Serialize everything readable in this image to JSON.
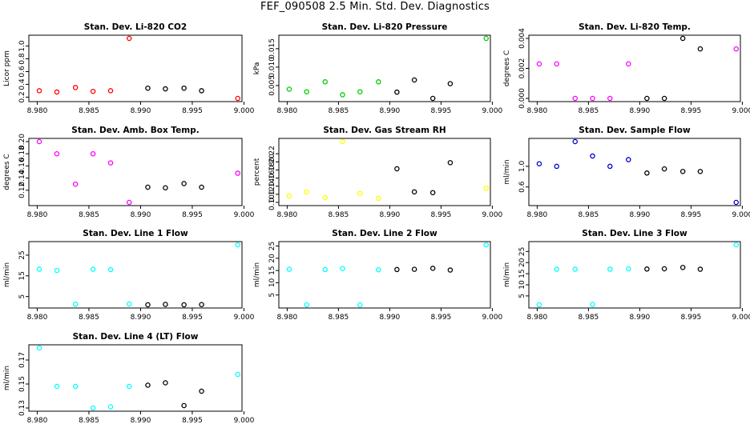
{
  "figure_title": "FEF_090508  2.5 Min. Std. Dev. Diagnostics",
  "chart_data": [
    {
      "type": "scatter",
      "title": "Stan. Dev. Li-820 CO2",
      "ylabel": "Licor ppm",
      "xlim": [
        8.9795,
        8.9995
      ],
      "ylim": [
        0.18,
        1.12
      ],
      "xticks": [
        8.98,
        8.985,
        8.99,
        8.995,
        9.0
      ],
      "xtick_labels": [
        "8.980",
        "8.985",
        "8.990",
        "8.995",
        "9.000"
      ],
      "yticks": [
        0.2,
        0.4,
        0.6,
        0.8,
        1.0
      ],
      "ytick_labels": [
        "0.2",
        "0.4",
        "0.6",
        "0.8",
        "1.0"
      ],
      "points": [
        {
          "x": 8.9802,
          "y": 0.3,
          "color": "#ff0000"
        },
        {
          "x": 8.9819,
          "y": 0.28,
          "color": "#ff0000"
        },
        {
          "x": 8.9837,
          "y": 0.35,
          "color": "#ff0000"
        },
        {
          "x": 8.9854,
          "y": 0.29,
          "color": "#ff0000"
        },
        {
          "x": 8.9871,
          "y": 0.3,
          "color": "#ff0000"
        },
        {
          "x": 8.9889,
          "y": 1.12,
          "color": "#ff0000"
        },
        {
          "x": 8.9907,
          "y": 0.34,
          "color": "#000000"
        },
        {
          "x": 8.9924,
          "y": 0.33,
          "color": "#000000"
        },
        {
          "x": 8.9942,
          "y": 0.34,
          "color": "#000000"
        },
        {
          "x": 8.9959,
          "y": 0.3,
          "color": "#000000"
        },
        {
          "x": 8.9994,
          "y": 0.18,
          "color": "#ff0000"
        }
      ]
    },
    {
      "type": "scatter",
      "title": "Stan. Dev. Li-820 Pressure",
      "ylabel": "kPa",
      "xlim": [
        8.9795,
        8.9995
      ],
      "ylim": [
        0.0015,
        0.0178
      ],
      "xticks": [
        8.98,
        8.985,
        8.99,
        8.995,
        9.0
      ],
      "xtick_labels": [
        "8.980",
        "8.985",
        "8.990",
        "8.995",
        "9.000"
      ],
      "yticks": [
        0.005,
        0.01,
        0.015
      ],
      "ytick_labels": [
        "0.005",
        "0.010",
        "0.015"
      ],
      "points": [
        {
          "x": 8.9802,
          "y": 0.004,
          "color": "#00cc00"
        },
        {
          "x": 8.9819,
          "y": 0.0033,
          "color": "#00cc00"
        },
        {
          "x": 8.9837,
          "y": 0.006,
          "color": "#00cc00"
        },
        {
          "x": 8.9854,
          "y": 0.0025,
          "color": "#00cc00"
        },
        {
          "x": 8.9871,
          "y": 0.0033,
          "color": "#00cc00"
        },
        {
          "x": 8.9889,
          "y": 0.006,
          "color": "#00cc00"
        },
        {
          "x": 8.9907,
          "y": 0.0032,
          "color": "#000000"
        },
        {
          "x": 8.9924,
          "y": 0.0065,
          "color": "#000000"
        },
        {
          "x": 8.9942,
          "y": 0.0015,
          "color": "#000000"
        },
        {
          "x": 8.9959,
          "y": 0.0055,
          "color": "#000000"
        },
        {
          "x": 8.9994,
          "y": 0.0178,
          "color": "#00cc00"
        }
      ]
    },
    {
      "type": "scatter",
      "title": "Stan. Dev. Li-820 Temp.",
      "ylabel": "degrees C",
      "xlim": [
        8.9795,
        8.9995
      ],
      "ylim": [
        0.0,
        0.004
      ],
      "xticks": [
        8.98,
        8.985,
        8.99,
        8.995,
        9.0
      ],
      "xtick_labels": [
        "8.980",
        "8.985",
        "8.990",
        "8.995",
        "9.000"
      ],
      "yticks": [
        0.0,
        0.002,
        0.004
      ],
      "ytick_labels": [
        "0.000",
        "0.002",
        "0.004"
      ],
      "points": [
        {
          "x": 8.9802,
          "y": 0.0023,
          "color": "#ff00ff"
        },
        {
          "x": 8.9819,
          "y": 0.0023,
          "color": "#ff00ff"
        },
        {
          "x": 8.9837,
          "y": 0.0,
          "color": "#ff00ff"
        },
        {
          "x": 8.9854,
          "y": 0.0,
          "color": "#ff00ff"
        },
        {
          "x": 8.9871,
          "y": 0.0,
          "color": "#ff00ff"
        },
        {
          "x": 8.9889,
          "y": 0.0023,
          "color": "#ff00ff"
        },
        {
          "x": 8.9907,
          "y": 0.0,
          "color": "#000000"
        },
        {
          "x": 8.9924,
          "y": 0.0,
          "color": "#000000"
        },
        {
          "x": 8.9942,
          "y": 0.004,
          "color": "#000000"
        },
        {
          "x": 8.9959,
          "y": 0.0033,
          "color": "#000000"
        },
        {
          "x": 8.9994,
          "y": 0.0033,
          "color": "#ff00ff"
        }
      ]
    },
    {
      "type": "scatter",
      "title": "Stan. Dev. Amb. Box Temp.",
      "ylabel": "degrees C",
      "xlim": [
        8.9795,
        8.9995
      ],
      "ylim": [
        0.1,
        0.2
      ],
      "xticks": [
        8.98,
        8.985,
        8.99,
        8.995,
        9.0
      ],
      "xtick_labels": [
        "8.980",
        "8.985",
        "8.990",
        "8.995",
        "9.000"
      ],
      "yticks": [
        0.12,
        0.14,
        0.16,
        0.18,
        0.2
      ],
      "ytick_labels": [
        "0.12",
        "0.14",
        "0.16",
        "0.18",
        "0.20"
      ],
      "points": [
        {
          "x": 8.9802,
          "y": 0.2,
          "color": "#ff00ff"
        },
        {
          "x": 8.9819,
          "y": 0.18,
          "color": "#ff00ff"
        },
        {
          "x": 8.9837,
          "y": 0.13,
          "color": "#ff00ff"
        },
        {
          "x": 8.9854,
          "y": 0.18,
          "color": "#ff00ff"
        },
        {
          "x": 8.9871,
          "y": 0.165,
          "color": "#ff00ff"
        },
        {
          "x": 8.9889,
          "y": 0.1,
          "color": "#ff00ff"
        },
        {
          "x": 8.9907,
          "y": 0.125,
          "color": "#000000"
        },
        {
          "x": 8.9924,
          "y": 0.124,
          "color": "#000000"
        },
        {
          "x": 8.9942,
          "y": 0.131,
          "color": "#000000"
        },
        {
          "x": 8.9959,
          "y": 0.125,
          "color": "#000000"
        },
        {
          "x": 8.9994,
          "y": 0.148,
          "color": "#ff00ff"
        }
      ]
    },
    {
      "type": "scatter",
      "title": "Stan. Dev. Gas Stream RH",
      "ylabel": "percent",
      "xlim": [
        8.9795,
        8.9995
      ],
      "ylim": [
        0.1,
        0.25
      ],
      "xticks": [
        8.98,
        8.985,
        8.99,
        8.995,
        9.0
      ],
      "xtick_labels": [
        "8.980",
        "8.985",
        "8.990",
        "8.995",
        "9.000"
      ],
      "yticks": [
        0.1,
        0.12,
        0.14,
        0.16,
        0.18,
        0.2,
        0.22
      ],
      "ytick_labels": [
        "0.10",
        "0.12",
        "0.14",
        "0.16",
        "0.18",
        "0.20",
        "0.22"
      ],
      "points": [
        {
          "x": 8.9802,
          "y": 0.116,
          "color": "#ffff00"
        },
        {
          "x": 8.9819,
          "y": 0.126,
          "color": "#ffff00"
        },
        {
          "x": 8.9837,
          "y": 0.112,
          "color": "#ffff00"
        },
        {
          "x": 8.9854,
          "y": 0.25,
          "color": "#ffff00"
        },
        {
          "x": 8.9871,
          "y": 0.122,
          "color": "#ffff00"
        },
        {
          "x": 8.9889,
          "y": 0.11,
          "color": "#ffff00"
        },
        {
          "x": 8.9907,
          "y": 0.183,
          "color": "#000000"
        },
        {
          "x": 8.9924,
          "y": 0.126,
          "color": "#000000"
        },
        {
          "x": 8.9942,
          "y": 0.124,
          "color": "#000000"
        },
        {
          "x": 8.9959,
          "y": 0.198,
          "color": "#000000"
        },
        {
          "x": 8.9994,
          "y": 0.135,
          "color": "#ffff00"
        }
      ]
    },
    {
      "type": "scatter",
      "title": "Stan. Dev. Sample Flow",
      "ylabel": "ml/min",
      "xlim": [
        8.9795,
        8.9995
      ],
      "ylim": [
        0.3,
        1.48
      ],
      "xticks": [
        8.98,
        8.985,
        8.99,
        8.995,
        9.0
      ],
      "xtick_labels": [
        "8.980",
        "8.985",
        "8.990",
        "8.995",
        "9.000"
      ],
      "yticks": [
        0.6,
        1.0
      ],
      "ytick_labels": [
        "0.6",
        "1.0"
      ],
      "points": [
        {
          "x": 8.9802,
          "y": 1.05,
          "color": "#0000cc"
        },
        {
          "x": 8.9819,
          "y": 1.0,
          "color": "#0000cc"
        },
        {
          "x": 8.9837,
          "y": 1.48,
          "color": "#0000cc"
        },
        {
          "x": 8.9854,
          "y": 1.2,
          "color": "#0000cc"
        },
        {
          "x": 8.9871,
          "y": 1.0,
          "color": "#0000cc"
        },
        {
          "x": 8.9889,
          "y": 1.13,
          "color": "#0000cc"
        },
        {
          "x": 8.9907,
          "y": 0.87,
          "color": "#000000"
        },
        {
          "x": 8.9924,
          "y": 0.95,
          "color": "#000000"
        },
        {
          "x": 8.9942,
          "y": 0.9,
          "color": "#000000"
        },
        {
          "x": 8.9959,
          "y": 0.9,
          "color": "#000000"
        },
        {
          "x": 8.9994,
          "y": 0.3,
          "color": "#0000cc"
        }
      ]
    },
    {
      "type": "scatter",
      "title": "Stan. Dev. Line 1 Flow",
      "ylabel": "ml/min",
      "xlim": [
        8.9795,
        8.9995
      ],
      "ylim": [
        1.0,
        30.0
      ],
      "xticks": [
        8.98,
        8.985,
        8.99,
        8.995,
        9.0
      ],
      "xtick_labels": [
        "8.980",
        "8.985",
        "8.990",
        "8.995",
        "9.000"
      ],
      "yticks": [
        5,
        15,
        25
      ],
      "ytick_labels": [
        "5",
        "15",
        "25"
      ],
      "points": [
        {
          "x": 8.9802,
          "y": 18.2,
          "color": "#00ffff"
        },
        {
          "x": 8.9819,
          "y": 17.6,
          "color": "#00ffff"
        },
        {
          "x": 8.9837,
          "y": 1.3,
          "color": "#00ffff"
        },
        {
          "x": 8.9854,
          "y": 18.2,
          "color": "#00ffff"
        },
        {
          "x": 8.9871,
          "y": 18.0,
          "color": "#00ffff"
        },
        {
          "x": 8.9889,
          "y": 1.4,
          "color": "#00ffff"
        },
        {
          "x": 8.9907,
          "y": 1.0,
          "color": "#000000"
        },
        {
          "x": 8.9924,
          "y": 1.2,
          "color": "#000000"
        },
        {
          "x": 8.9942,
          "y": 1.0,
          "color": "#000000"
        },
        {
          "x": 8.9959,
          "y": 1.1,
          "color": "#000000"
        },
        {
          "x": 8.9994,
          "y": 30.0,
          "color": "#00ffff"
        }
      ]
    },
    {
      "type": "scatter",
      "title": "Stan. Dev. Line 2 Flow",
      "ylabel": "ml/min",
      "xlim": [
        8.9795,
        8.9995
      ],
      "ylim": [
        1.0,
        25.5
      ],
      "xticks": [
        8.98,
        8.985,
        8.99,
        8.995,
        9.0
      ],
      "xtick_labels": [
        "8.980",
        "8.985",
        "8.990",
        "8.995",
        "9.000"
      ],
      "yticks": [
        5,
        10,
        15,
        20,
        25
      ],
      "ytick_labels": [
        "5",
        "10",
        "15",
        "20",
        "25"
      ],
      "points": [
        {
          "x": 8.9802,
          "y": 15.5,
          "color": "#00ffff"
        },
        {
          "x": 8.9819,
          "y": 1.0,
          "color": "#00ffff"
        },
        {
          "x": 8.9837,
          "y": 15.4,
          "color": "#00ffff"
        },
        {
          "x": 8.9854,
          "y": 15.8,
          "color": "#00ffff"
        },
        {
          "x": 8.9871,
          "y": 1.0,
          "color": "#00ffff"
        },
        {
          "x": 8.9889,
          "y": 15.3,
          "color": "#00ffff"
        },
        {
          "x": 8.9907,
          "y": 15.4,
          "color": "#000000"
        },
        {
          "x": 8.9924,
          "y": 15.5,
          "color": "#000000"
        },
        {
          "x": 8.9942,
          "y": 15.9,
          "color": "#000000"
        },
        {
          "x": 8.9959,
          "y": 15.2,
          "color": "#000000"
        },
        {
          "x": 8.9994,
          "y": 25.5,
          "color": "#00ffff"
        }
      ]
    },
    {
      "type": "scatter",
      "title": "Stan. Dev. Line 3 Flow",
      "ylabel": "ml/min",
      "xlim": [
        8.9795,
        8.9995
      ],
      "ylim": [
        1.0,
        28.0
      ],
      "xticks": [
        8.98,
        8.985,
        8.99,
        8.995,
        9.0
      ],
      "xtick_labels": [
        "8.980",
        "8.985",
        "8.990",
        "8.995",
        "9.000"
      ],
      "yticks": [
        5,
        10,
        15,
        20,
        25
      ],
      "ytick_labels": [
        "5",
        "10",
        "15",
        "20",
        "25"
      ],
      "points": [
        {
          "x": 8.9802,
          "y": 1.0,
          "color": "#00ffff"
        },
        {
          "x": 8.9819,
          "y": 17.0,
          "color": "#00ffff"
        },
        {
          "x": 8.9837,
          "y": 17.0,
          "color": "#00ffff"
        },
        {
          "x": 8.9854,
          "y": 1.2,
          "color": "#00ffff"
        },
        {
          "x": 8.9871,
          "y": 17.0,
          "color": "#00ffff"
        },
        {
          "x": 8.9889,
          "y": 17.2,
          "color": "#00ffff"
        },
        {
          "x": 8.9907,
          "y": 17.1,
          "color": "#000000"
        },
        {
          "x": 8.9924,
          "y": 17.2,
          "color": "#000000"
        },
        {
          "x": 8.9942,
          "y": 17.8,
          "color": "#000000"
        },
        {
          "x": 8.9959,
          "y": 17.0,
          "color": "#000000"
        },
        {
          "x": 8.9994,
          "y": 28.0,
          "color": "#00ffff"
        }
      ]
    },
    {
      "type": "scatter",
      "title": "Stan. Dev. Line 4 (LT) Flow",
      "ylabel": "ml/min",
      "xlim": [
        8.9795,
        8.9995
      ],
      "ylim": [
        0.13,
        0.18
      ],
      "xticks": [
        8.98,
        8.985,
        8.99,
        8.995,
        9.0
      ],
      "xtick_labels": [
        "8.980",
        "8.985",
        "8.990",
        "8.995",
        "9.000"
      ],
      "yticks": [
        0.13,
        0.15,
        0.17
      ],
      "ytick_labels": [
        "0.13",
        "0.15",
        "0.17"
      ],
      "points": [
        {
          "x": 8.9802,
          "y": 0.18,
          "color": "#00ffff"
        },
        {
          "x": 8.9819,
          "y": 0.148,
          "color": "#00ffff"
        },
        {
          "x": 8.9837,
          "y": 0.148,
          "color": "#00ffff"
        },
        {
          "x": 8.9854,
          "y": 0.13,
          "color": "#00ffff"
        },
        {
          "x": 8.9871,
          "y": 0.131,
          "color": "#00ffff"
        },
        {
          "x": 8.9889,
          "y": 0.148,
          "color": "#00ffff"
        },
        {
          "x": 8.9907,
          "y": 0.149,
          "color": "#000000"
        },
        {
          "x": 8.9924,
          "y": 0.151,
          "color": "#000000"
        },
        {
          "x": 8.9942,
          "y": 0.132,
          "color": "#000000"
        },
        {
          "x": 8.9959,
          "y": 0.144,
          "color": "#000000"
        },
        {
          "x": 8.9994,
          "y": 0.158,
          "color": "#00ffff"
        }
      ]
    }
  ]
}
